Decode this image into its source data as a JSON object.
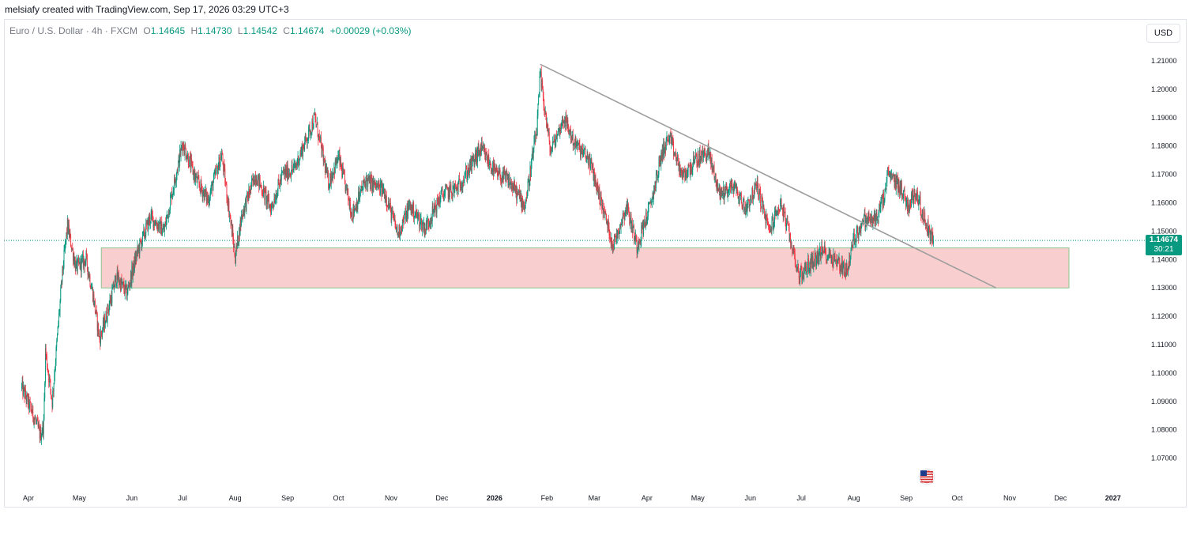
{
  "header": {
    "credit": "melsiafy created with TradingView.com, Sep 17, 2026 03:29 UTC+3"
  },
  "legend": {
    "symbol": "Euro / U.S. Dollar · 4h · FXCM",
    "o_label": "O",
    "o_value": "1.14645",
    "h_label": "H",
    "h_value": "1.14730",
    "l_label": "L",
    "l_value": "1.14542",
    "c_label": "C",
    "c_value": "1.14674",
    "change": "+0.00029 (+0.03%)"
  },
  "currency_button": "USD",
  "last_price": {
    "price": "1.14674",
    "countdown": "30:21"
  },
  "chart_data": {
    "type": "candlestick",
    "timeframe": "4h",
    "y_ticks": [
      "1.21000",
      "1.20000",
      "1.19000",
      "1.18000",
      "1.17000",
      "1.16000",
      "1.15000",
      "1.14000",
      "1.13000",
      "1.12000",
      "1.11000",
      "1.10000",
      "1.09000",
      "1.08000",
      "1.07000"
    ],
    "ylim": [
      1.064,
      1.218
    ],
    "x_labels": [
      "Apr",
      "May",
      "Jun",
      "Jul",
      "Aug",
      "Sep",
      "Oct",
      "Nov",
      "Dec",
      "2026",
      "Feb",
      "Mar",
      "Apr",
      "May",
      "Jun",
      "Jul",
      "Aug",
      "Sep",
      "Oct",
      "Nov",
      "Dec",
      "2027"
    ],
    "current_price": 1.14674,
    "price_path": [
      [
        "2025-03-28",
        1.095
      ],
      [
        "2025-04-04",
        1.085
      ],
      [
        "2025-04-08",
        1.078
      ],
      [
        "2025-04-10",
        1.082
      ],
      [
        "2025-04-11",
        1.108
      ],
      [
        "2025-04-15",
        1.09
      ],
      [
        "2025-04-21",
        1.135
      ],
      [
        "2025-04-24",
        1.152
      ],
      [
        "2025-04-29",
        1.137
      ],
      [
        "2025-05-05",
        1.14
      ],
      [
        "2025-05-09",
        1.128
      ],
      [
        "2025-05-13",
        1.112
      ],
      [
        "2025-05-16",
        1.118
      ],
      [
        "2025-05-23",
        1.134
      ],
      [
        "2025-05-29",
        1.128
      ],
      [
        "2025-06-04",
        1.142
      ],
      [
        "2025-06-12",
        1.155
      ],
      [
        "2025-06-20",
        1.15
      ],
      [
        "2025-06-27",
        1.17
      ],
      [
        "2025-07-01",
        1.181
      ],
      [
        "2025-07-09",
        1.168
      ],
      [
        "2025-07-16",
        1.161
      ],
      [
        "2025-07-24",
        1.177
      ],
      [
        "2025-08-01",
        1.141
      ],
      [
        "2025-08-05",
        1.156
      ],
      [
        "2025-08-13",
        1.17
      ],
      [
        "2025-08-22",
        1.158
      ],
      [
        "2025-08-29",
        1.17
      ],
      [
        "2025-09-05",
        1.172
      ],
      [
        "2025-09-17",
        1.19
      ],
      [
        "2025-09-25",
        1.167
      ],
      [
        "2025-10-01",
        1.176
      ],
      [
        "2025-10-09",
        1.156
      ],
      [
        "2025-10-17",
        1.168
      ],
      [
        "2025-10-28",
        1.164
      ],
      [
        "2025-11-05",
        1.149
      ],
      [
        "2025-11-12",
        1.159
      ],
      [
        "2025-11-21",
        1.151
      ],
      [
        "2025-12-01",
        1.163
      ],
      [
        "2025-12-10",
        1.165
      ],
      [
        "2025-12-17",
        1.172
      ],
      [
        "2025-12-24",
        1.179
      ],
      [
        "2026-01-02",
        1.17
      ],
      [
        "2026-01-09",
        1.168
      ],
      [
        "2026-01-19",
        1.159
      ],
      [
        "2026-01-26",
        1.186
      ],
      [
        "2026-01-28",
        1.205
      ],
      [
        "2026-02-03",
        1.178
      ],
      [
        "2026-02-11",
        1.19
      ],
      [
        "2026-02-17",
        1.181
      ],
      [
        "2026-02-26",
        1.175
      ],
      [
        "2026-03-06",
        1.158
      ],
      [
        "2026-03-12",
        1.145
      ],
      [
        "2026-03-20",
        1.159
      ],
      [
        "2026-03-26",
        1.145
      ],
      [
        "2026-04-03",
        1.159
      ],
      [
        "2026-04-10",
        1.178
      ],
      [
        "2026-04-14",
        1.183
      ],
      [
        "2026-04-22",
        1.169
      ],
      [
        "2026-04-30",
        1.175
      ],
      [
        "2026-05-07",
        1.178
      ],
      [
        "2026-05-14",
        1.163
      ],
      [
        "2026-05-22",
        1.166
      ],
      [
        "2026-05-29",
        1.158
      ],
      [
        "2026-06-05",
        1.166
      ],
      [
        "2026-06-12",
        1.15
      ],
      [
        "2026-06-19",
        1.16
      ],
      [
        "2026-06-25",
        1.146
      ],
      [
        "2026-06-30",
        1.134
      ],
      [
        "2026-07-07",
        1.139
      ],
      [
        "2026-07-14",
        1.143
      ],
      [
        "2026-07-21",
        1.14
      ],
      [
        "2026-07-28",
        1.136
      ],
      [
        "2026-08-01",
        1.147
      ],
      [
        "2026-08-07",
        1.154
      ],
      [
        "2026-08-14",
        1.154
      ],
      [
        "2026-08-19",
        1.162
      ],
      [
        "2026-08-21",
        1.17
      ],
      [
        "2026-08-28",
        1.166
      ],
      [
        "2026-09-02",
        1.159
      ],
      [
        "2026-09-07",
        1.164
      ],
      [
        "2026-09-11",
        1.155
      ],
      [
        "2026-09-17",
        1.14674
      ]
    ],
    "zone": {
      "x0": "2025-05-14",
      "x1": "2026-12-06",
      "y0": 1.13,
      "y1": 1.1441,
      "color": "#f7cac9"
    },
    "trendline": {
      "x0": "2026-01-28",
      "y0": 1.2088,
      "x1": "2026-10-24",
      "y1": 1.13,
      "color": "#9e9e9e"
    }
  },
  "badge_icon": "us-flag-icon"
}
